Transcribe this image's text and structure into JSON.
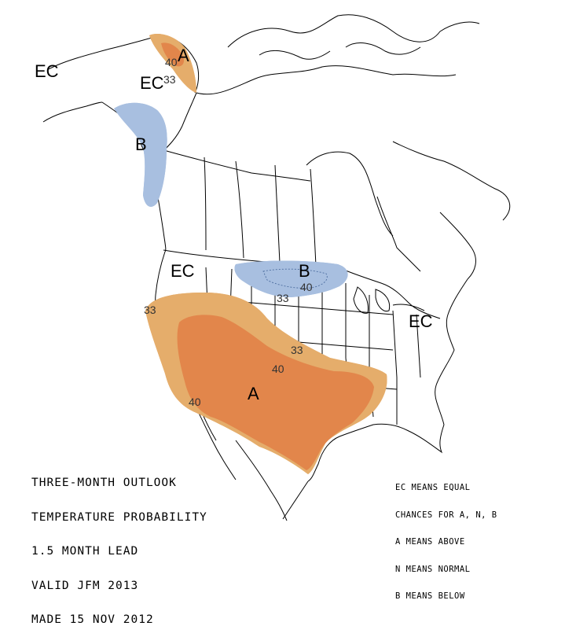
{
  "title_lines": [
    "THREE-MONTH OUTLOOK",
    "TEMPERATURE PROBABILITY",
    "1.5 MONTH LEAD",
    "VALID JFM 2013",
    "MADE 15 NOV 2012"
  ],
  "legend_lines": [
    "EC MEANS EQUAL",
    "CHANCES FOR A, N, B",
    "A MEANS ABOVE",
    "N MEANS NORMAL",
    "B MEANS BELOW"
  ],
  "region_labels": {
    "ec_alaska": "EC",
    "ec_alaska_north": "EC",
    "ec_west": "EC",
    "ec_east": "EC",
    "a_alaska": "A",
    "a_southwest": "A",
    "b_alaska": "B",
    "b_plains": "B"
  },
  "contour_labels": {
    "alaska_40": "40",
    "alaska_33": "33",
    "plains_40": "40",
    "plains_33": "33",
    "west_33": "33",
    "central_33": "33",
    "central_40": "40",
    "sw_40": "40"
  },
  "colors": {
    "above_33": "#E5AD6B",
    "above_40": "#E2864B",
    "below_33": "#A8BFE0"
  }
}
